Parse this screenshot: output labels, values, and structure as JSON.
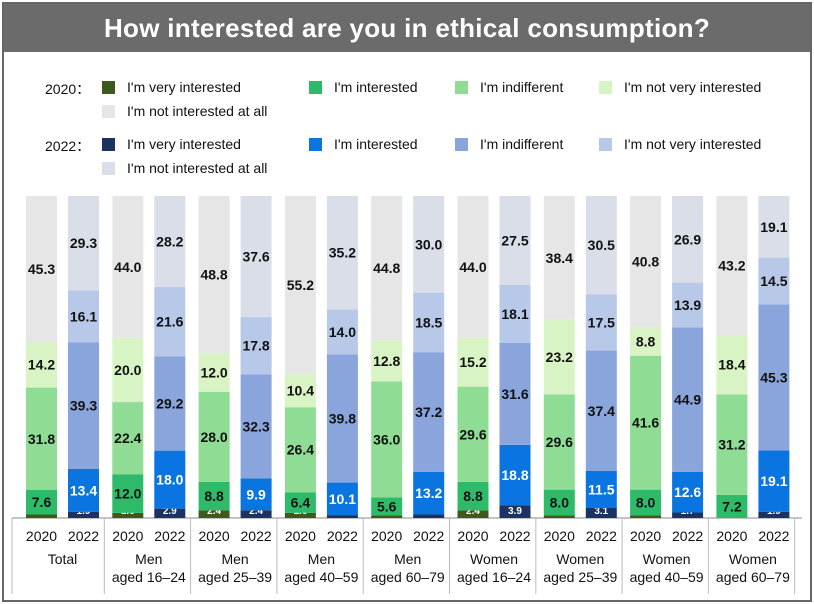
{
  "title": "How interested are you in ethical consumption?",
  "legend": {
    "year2020_label": "2020：",
    "year2022_label": "2022：",
    "items": [
      "I'm very interested",
      "I'm interested",
      "I'm indifferent",
      "I'm not very interested",
      "I'm not interested at all"
    ]
  },
  "colors": {
    "2020": [
      "#3d5a1e",
      "#2dbb6a",
      "#8fdc94",
      "#d8f3c4",
      "#e6e6e6"
    ],
    "2022": [
      "#1c3361",
      "#0a74e0",
      "#8aa5dc",
      "#b7c8e8",
      "#d9dee8"
    ]
  },
  "chart_data": {
    "type": "stacked-bar-100",
    "title": "How interested are you in ethical consumption?",
    "unit": "%",
    "stack_order_bottom_to_top": [
      "I'm very interested",
      "I'm interested",
      "I'm indifferent",
      "I'm not very interested",
      "I'm not interested at all"
    ],
    "groups": [
      {
        "label": [
          "Total"
        ],
        "bars": [
          {
            "year": "2020",
            "values": [
              "1.1",
              "7.6",
              "31.8",
              "14.2",
              "45.3"
            ]
          },
          {
            "year": "2022",
            "values": [
              "1.9",
              "13.4",
              "39.3",
              "16.1",
              "29.3"
            ]
          }
        ]
      },
      {
        "label": [
          "Men",
          "aged 16–24"
        ],
        "bars": [
          {
            "year": "2020",
            "values": [
              "1.6",
              "12.0",
              "22.4",
              "20.0",
              "44.0"
            ]
          },
          {
            "year": "2022",
            "values": [
              "2.9",
              "18.0",
              "29.2",
              "21.6",
              "28.2"
            ]
          }
        ]
      },
      {
        "label": [
          "Men",
          "aged 25–39"
        ],
        "bars": [
          {
            "year": "2020",
            "values": [
              "2.4",
              "8.8",
              "28.0",
              "12.0",
              "48.8"
            ]
          },
          {
            "year": "2022",
            "values": [
              "2.4",
              "9.9",
              "32.3",
              "17.8",
              "37.6"
            ]
          }
        ]
      },
      {
        "label": [
          "Men",
          "aged 40–59"
        ],
        "bars": [
          {
            "year": "2020",
            "values": [
              "1.6",
              "6.4",
              "26.4",
              "10.4",
              "55.2"
            ]
          },
          {
            "year": "2022",
            "values": [
              "0.9",
              "10.1",
              "39.8",
              "14.0",
              "35.2"
            ]
          }
        ]
      },
      {
        "label": [
          "Men",
          "aged 60–79"
        ],
        "bars": [
          {
            "year": "2020",
            "values": [
              "0.8",
              "5.6",
              "36.0",
              "12.8",
              "44.8"
            ]
          },
          {
            "year": "2022",
            "values": [
              "1.1",
              "13.2",
              "37.2",
              "18.5",
              "30.0"
            ]
          }
        ]
      },
      {
        "label": [
          "Women",
          "aged 16–24"
        ],
        "bars": [
          {
            "year": "2020",
            "values": [
              "2.4",
              "8.8",
              "29.6",
              "15.2",
              "44.0"
            ]
          },
          {
            "year": "2022",
            "values": [
              "3.9",
              "18.8",
              "31.6",
              "18.1",
              "27.5"
            ]
          }
        ]
      },
      {
        "label": [
          "Women",
          "aged 25–39"
        ],
        "bars": [
          {
            "year": "2020",
            "values": [
              "0.8",
              "8.0",
              "29.6",
              "23.2",
              "38.4"
            ]
          },
          {
            "year": "2022",
            "values": [
              "3.1",
              "11.5",
              "37.4",
              "17.5",
              "30.5"
            ]
          }
        ]
      },
      {
        "label": [
          "Women",
          "aged 40–59"
        ],
        "bars": [
          {
            "year": "2020",
            "values": [
              "0.8",
              "8.0",
              "41.6",
              "8.8",
              "40.8"
            ]
          },
          {
            "year": "2022",
            "values": [
              "1.7",
              "12.6",
              "44.9",
              "13.9",
              "26.9"
            ]
          }
        ]
      },
      {
        "label": [
          "Women",
          "aged 60–79"
        ],
        "bars": [
          {
            "year": "2020",
            "values": [
              "0.0",
              "7.2",
              "31.2",
              "18.4",
              "43.2"
            ]
          },
          {
            "year": "2022",
            "values": [
              "1.9",
              "19.1",
              "45.3",
              "14.5",
              "19.1"
            ]
          }
        ]
      }
    ]
  }
}
